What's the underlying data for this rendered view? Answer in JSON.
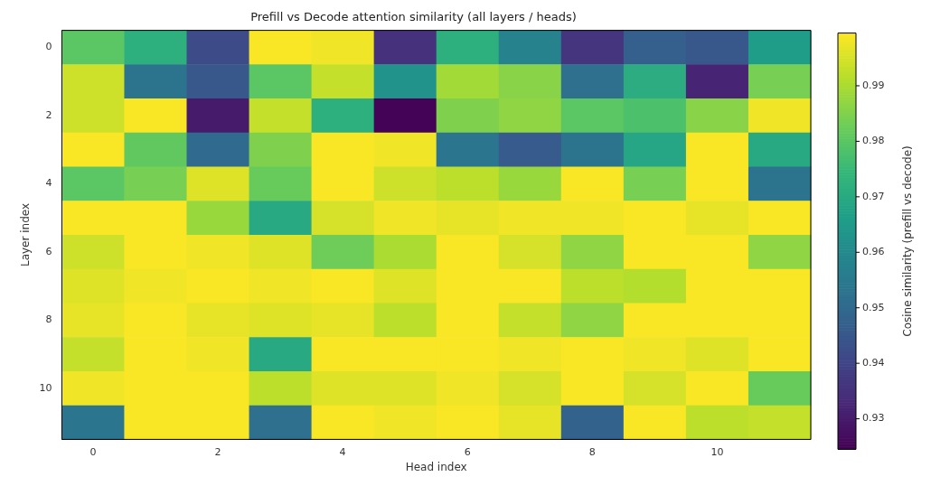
{
  "chart_data": {
    "type": "heatmap",
    "title": "Prefill vs Decode attention similarity (all layers / heads)",
    "xlabel": "Head index",
    "ylabel": "Layer index",
    "clabel": "Cosine similarity (prefill vs decode)",
    "categories": [
      "0",
      null,
      "2",
      null,
      "4",
      null,
      "6",
      null,
      "8",
      null,
      "10",
      null
    ],
    "y_categories": [
      "0",
      null,
      "2",
      null,
      "4",
      null,
      "6",
      null,
      "8",
      null,
      "10",
      null
    ],
    "cells": [
      [
        0.98,
        0.972,
        0.942,
        0.999,
        0.998,
        0.935,
        0.972,
        0.958,
        0.936,
        0.947,
        0.945,
        0.966
      ],
      [
        0.994,
        0.953,
        0.945,
        0.98,
        0.993,
        0.963,
        0.989,
        0.986,
        0.952,
        0.971,
        0.932,
        0.984
      ],
      [
        0.994,
        0.999,
        0.93,
        0.993,
        0.972,
        0.925,
        0.985,
        0.987,
        0.98,
        0.978,
        0.986,
        0.998
      ],
      [
        0.999,
        0.981,
        0.95,
        0.985,
        0.999,
        0.998,
        0.954,
        0.946,
        0.953,
        0.969,
        0.999,
        0.97
      ],
      [
        0.98,
        0.984,
        0.996,
        0.982,
        0.999,
        0.994,
        0.992,
        0.988,
        0.999,
        0.984,
        0.999,
        0.953
      ],
      [
        0.999,
        0.999,
        0.988,
        0.97,
        0.995,
        0.998,
        0.997,
        0.998,
        0.998,
        0.999,
        0.997,
        0.999
      ],
      [
        0.994,
        0.999,
        0.998,
        0.996,
        0.983,
        0.99,
        0.999,
        0.995,
        0.987,
        0.999,
        0.999,
        0.987
      ],
      [
        0.996,
        0.998,
        0.999,
        0.998,
        0.999,
        0.996,
        0.999,
        0.999,
        0.992,
        0.991,
        0.999,
        0.999
      ],
      [
        0.997,
        0.999,
        0.997,
        0.996,
        0.997,
        0.992,
        0.999,
        0.993,
        0.987,
        0.999,
        0.999,
        0.999
      ],
      [
        0.993,
        0.999,
        0.998,
        0.97,
        0.999,
        0.999,
        0.999,
        0.998,
        0.999,
        0.998,
        0.996,
        0.999
      ],
      [
        0.998,
        0.999,
        0.999,
        0.992,
        0.996,
        0.996,
        0.998,
        0.995,
        0.999,
        0.995,
        0.999,
        0.982
      ],
      [
        0.954,
        0.999,
        0.999,
        0.952,
        0.999,
        0.998,
        0.999,
        0.997,
        0.948,
        0.999,
        0.992,
        0.993
      ]
    ],
    "clim": [
      0.9245,
      0.9995
    ],
    "cticks": [
      0.93,
      0.94,
      0.95,
      0.96,
      0.97,
      0.98,
      0.99
    ],
    "grid": false
  }
}
